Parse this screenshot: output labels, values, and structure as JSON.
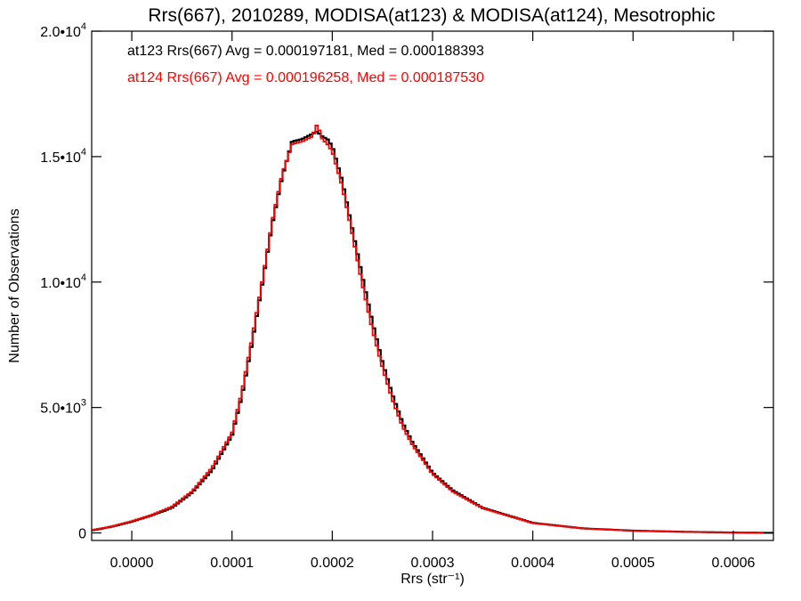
{
  "chart_data": {
    "type": "line",
    "step": true,
    "title": "Rrs(667), 2010289, MODISA(at123) & MODISA(at124), Mesotrophic",
    "xlabel": "Rrs (str⁻¹)",
    "ylabel": "Number of Observations",
    "xlim": [
      -4e-05,
      0.00064
    ],
    "ylim": [
      -300,
      20000
    ],
    "x_ticks": [
      {
        "value": 0.0,
        "label": "0.0000"
      },
      {
        "value": 0.0001,
        "label": "0.0001"
      },
      {
        "value": 0.0002,
        "label": "0.0002"
      },
      {
        "value": 0.0003,
        "label": "0.0003"
      },
      {
        "value": 0.0004,
        "label": "0.0004"
      },
      {
        "value": 0.0005,
        "label": "0.0005"
      },
      {
        "value": 0.0006,
        "label": "0.0006"
      }
    ],
    "y_ticks": [
      {
        "value": 0,
        "mantissa": "0",
        "exponent": ""
      },
      {
        "value": 5000,
        "mantissa": "5.0•10",
        "exponent": "3"
      },
      {
        "value": 10000,
        "mantissa": "1.0•10",
        "exponent": "4"
      },
      {
        "value": 15000,
        "mantissa": "1.5•10",
        "exponent": "4"
      },
      {
        "value": 20000,
        "mantissa": "2.0•10",
        "exponent": "4"
      }
    ],
    "annotations": [
      {
        "text": "at123 Rrs(667) Avg = 0.000197181, Med = 0.000188393",
        "color": "#000000"
      },
      {
        "text": "at124 Rrs(667) Avg = 0.000196258, Med = 0.000187530",
        "color": "#ff0000"
      }
    ],
    "series": [
      {
        "color": "#000000",
        "x": [
          -4e-05,
          -2e-05,
          0.0,
          2e-05,
          4e-05,
          6e-05,
          8e-05,
          0.0001,
          0.00011,
          0.00012,
          0.00013,
          0.00014,
          0.00015,
          0.00016,
          0.00017,
          0.000175,
          0.00018,
          0.000185,
          0.00019,
          0.000195,
          0.0002,
          0.00021,
          0.00022,
          0.00023,
          0.00024,
          0.00025,
          0.00026,
          0.00027,
          0.00028,
          0.0003,
          0.00032,
          0.00035,
          0.0004,
          0.00045,
          0.0005,
          0.00055,
          0.0006,
          0.00064
        ],
        "y": [
          100,
          250,
          450,
          700,
          1000,
          1600,
          2500,
          3900,
          5500,
          7600,
          9900,
          12300,
          14200,
          15600,
          15700,
          15800,
          15900,
          16000,
          15800,
          15700,
          15400,
          14000,
          12100,
          10200,
          8400,
          6800,
          5500,
          4400,
          3600,
          2400,
          1700,
          1000,
          400,
          180,
          90,
          45,
          15,
          5
        ]
      },
      {
        "color": "#ff0000",
        "x": [
          -4e-05,
          -2e-05,
          0.0,
          2e-05,
          4e-05,
          6e-05,
          8e-05,
          0.0001,
          0.00011,
          0.00012,
          0.00013,
          0.00014,
          0.00015,
          0.00016,
          0.00017,
          0.000175,
          0.00018,
          0.000185,
          0.00019,
          0.000195,
          0.0002,
          0.00021,
          0.00022,
          0.00023,
          0.00024,
          0.00025,
          0.00026,
          0.00027,
          0.00028,
          0.0003,
          0.00032,
          0.00035,
          0.0004,
          0.00045,
          0.0005,
          0.00055,
          0.0006,
          0.00064
        ],
        "y": [
          110,
          260,
          470,
          720,
          1050,
          1650,
          2600,
          4000,
          5650,
          7750,
          10000,
          12400,
          14300,
          15500,
          15600,
          15700,
          15800,
          16300,
          15700,
          15500,
          15200,
          13800,
          11900,
          9900,
          8100,
          6600,
          5300,
          4250,
          3500,
          2350,
          1650,
          980,
          390,
          175,
          85,
          42,
          14,
          5
        ]
      }
    ]
  }
}
